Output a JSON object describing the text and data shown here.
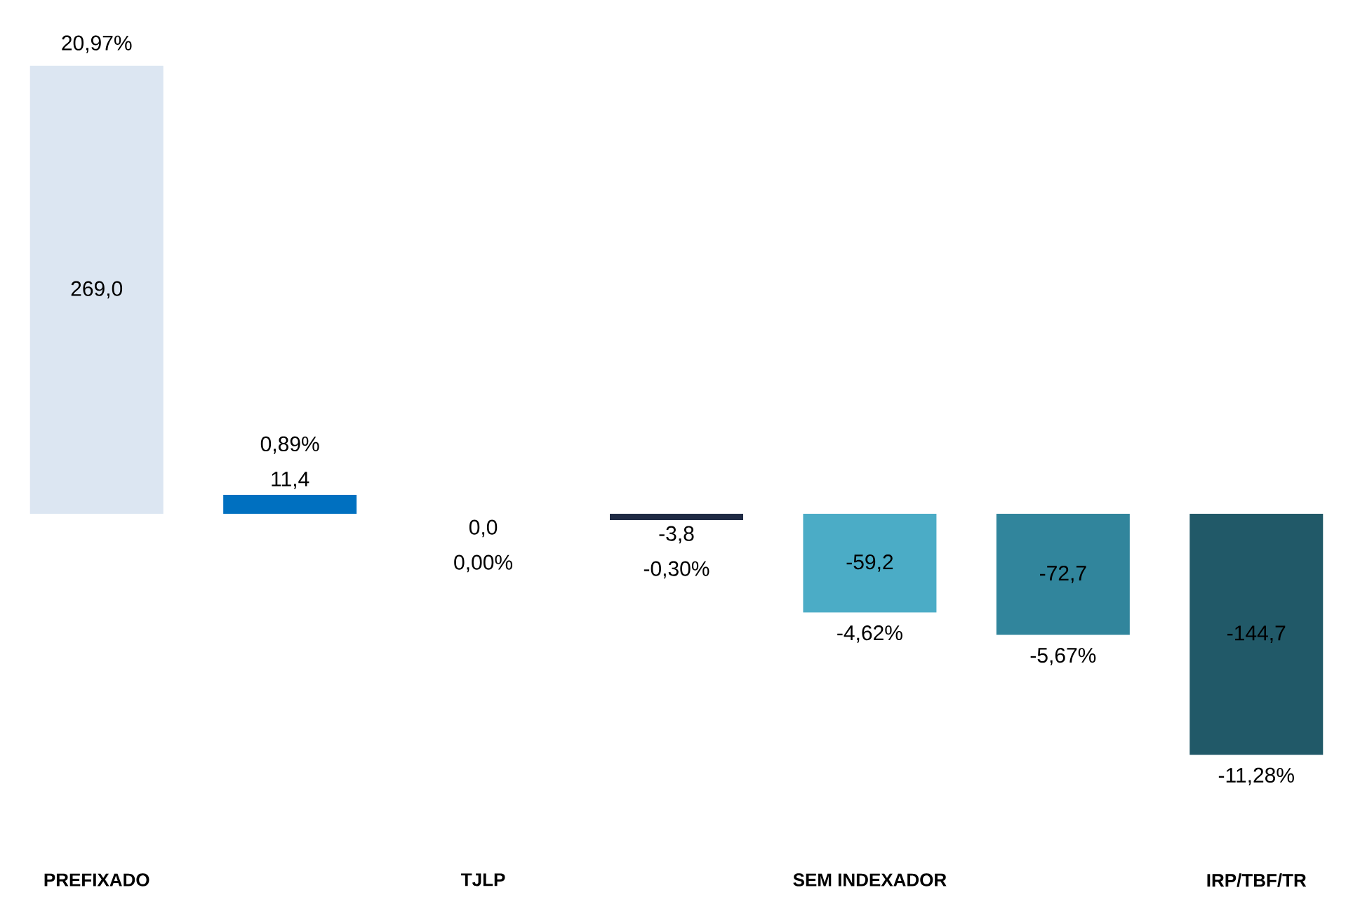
{
  "chart_data": {
    "type": "bar",
    "categories": [
      "PREFIXADO",
      null,
      "TJLP",
      null,
      "SEM INDEXADOR",
      null,
      "IRP/TBF/TR"
    ],
    "values": [
      269.0,
      11.4,
      0.0,
      -3.8,
      -59.2,
      -72.7,
      -144.7
    ],
    "value_labels": [
      "269,0",
      "11,4",
      "0,0",
      "-3,8",
      "-59,2",
      "-72,7",
      "-144,7"
    ],
    "colors": [
      "#dce6f2",
      "#0070c0",
      "#f2f2f2",
      "#1f2a44",
      "#4bacc6",
      "#31859c",
      "#215968"
    ],
    "annotations": [
      "20,97%",
      "0,89%",
      "0,00%",
      "-0,30%",
      "-4,62%",
      "-5,67%",
      "-11,28%"
    ]
  }
}
